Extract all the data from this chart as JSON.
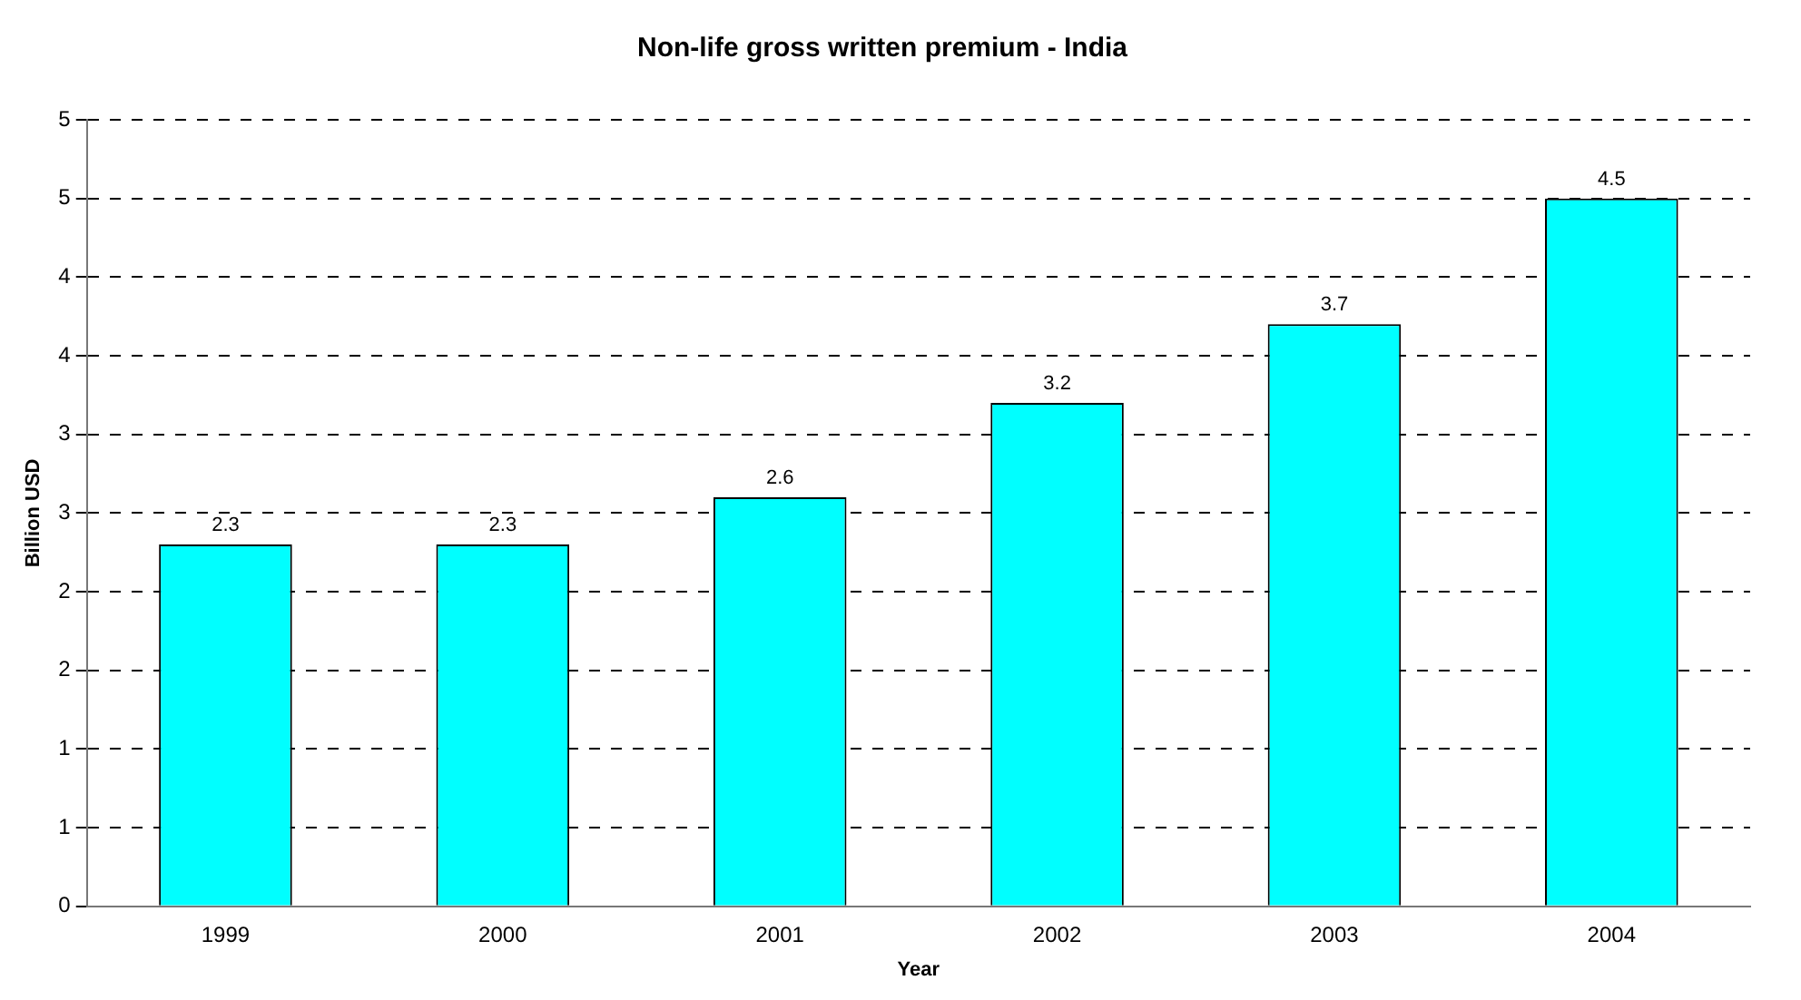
{
  "chart_data": {
    "type": "bar",
    "title": "Non-life gross written premium - India",
    "xlabel": "Year",
    "ylabel": "Billion USD",
    "categories": [
      "1999",
      "2000",
      "2001",
      "2002",
      "2003",
      "2004"
    ],
    "values": [
      2.3,
      2.3,
      2.6,
      3.2,
      3.7,
      4.5
    ],
    "color": "#00ffff",
    "ylim": [
      0,
      5
    ],
    "yticks": [
      0,
      {
        "value": 0.5,
        "label": "1"
      },
      1,
      {
        "value": 1.5,
        "label": "2"
      },
      2,
      {
        "value": 2.5,
        "label": "3"
      },
      3,
      {
        "value": 3.5,
        "label": "4"
      },
      4,
      {
        "value": 4.5,
        "label": "5"
      },
      5
    ],
    "grid": "y",
    "legend": false,
    "data_labels": true
  }
}
